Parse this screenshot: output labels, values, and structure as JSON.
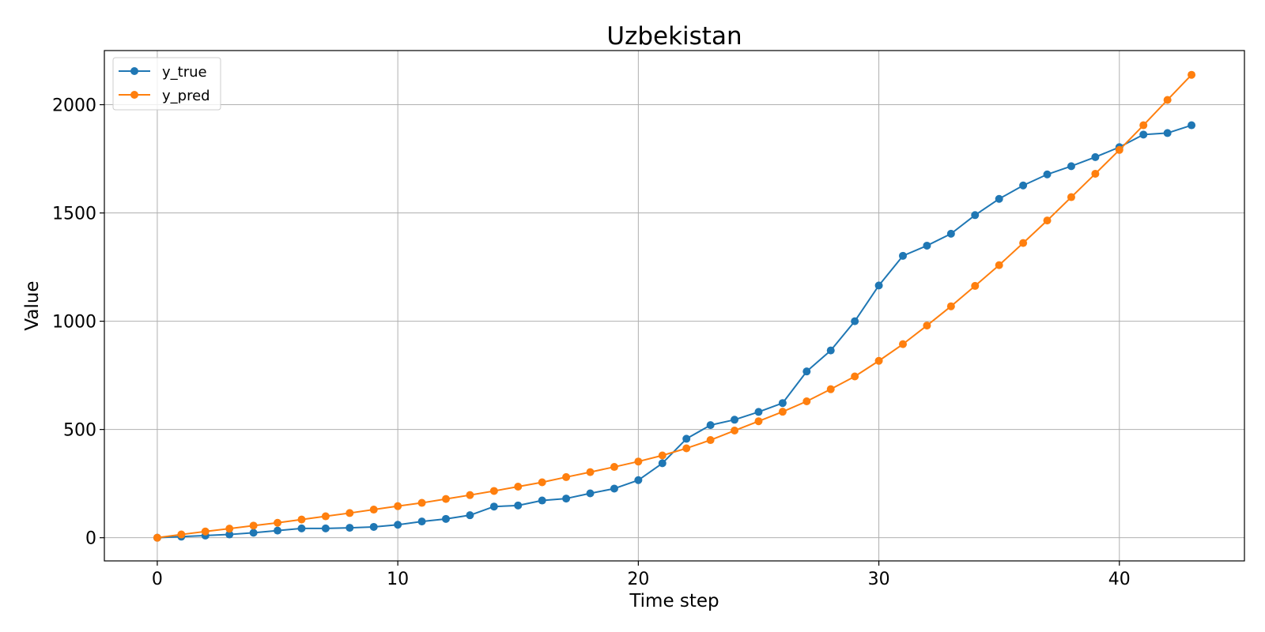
{
  "chart_data": {
    "type": "line",
    "title": "Uzbekistan",
    "xlabel": "Time step",
    "ylabel": "Value",
    "xlim": [
      -2.2,
      45.2
    ],
    "ylim": [
      -107,
      2250
    ],
    "xticks": [
      0,
      10,
      20,
      30,
      40
    ],
    "yticks": [
      0,
      500,
      1000,
      1500,
      2000
    ],
    "grid": true,
    "legend": "top-left",
    "x": [
      0,
      1,
      2,
      3,
      4,
      5,
      6,
      7,
      8,
      9,
      10,
      11,
      12,
      13,
      14,
      15,
      16,
      17,
      18,
      19,
      20,
      21,
      22,
      23,
      24,
      25,
      26,
      27,
      28,
      29,
      30,
      31,
      32,
      33,
      34,
      35,
      36,
      37,
      38,
      39,
      40,
      41,
      42,
      43
    ],
    "series": [
      {
        "name": "y_true",
        "color": "#1f77b4",
        "values": [
          0,
          5,
          10,
          15,
          23,
          33,
          43,
          43,
          46,
          50,
          60,
          75,
          87,
          104,
          144,
          149,
          172,
          181,
          205,
          227,
          266,
          344,
          457,
          520,
          545,
          581,
          622,
          768,
          865,
          1000,
          1165,
          1302,
          1349,
          1404,
          1490,
          1565,
          1627,
          1678,
          1716,
          1758,
          1804,
          1862,
          1869,
          1905
        ]
      },
      {
        "name": "y_pred",
        "color": "#ff7f0e",
        "values": [
          0,
          15,
          29,
          42,
          56,
          69,
          84,
          99,
          114,
          130,
          146,
          161,
          179,
          197,
          216,
          236,
          256,
          280,
          303,
          327,
          352,
          380,
          413,
          451,
          495,
          538,
          582,
          630,
          686,
          745,
          817,
          894,
          980,
          1069,
          1163,
          1259,
          1361,
          1465,
          1573,
          1681,
          1791,
          1905,
          2022,
          2138
        ]
      }
    ]
  }
}
